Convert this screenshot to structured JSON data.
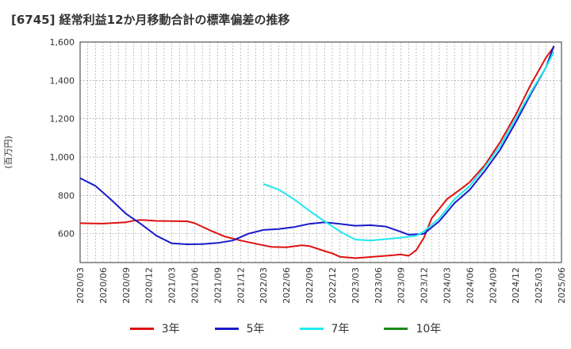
{
  "chart_data": {
    "type": "line",
    "title": "[6745]  経常利益12か月移動合計の標準偏差の推移",
    "ylabel": "(百万円)",
    "ylim": [
      450,
      1600
    ],
    "yticks": [
      600,
      800,
      1000,
      1200,
      1400,
      1600
    ],
    "ytick_labels": [
      "600",
      "800",
      "1,000",
      "1,200",
      "1,400",
      "1,600"
    ],
    "xticks": [
      "2020/03",
      "2020/06",
      "2020/09",
      "2020/12",
      "2021/03",
      "2021/06",
      "2021/09",
      "2021/12",
      "2022/03",
      "2022/06",
      "2022/09",
      "2022/12",
      "2023/03",
      "2023/06",
      "2023/09",
      "2023/12",
      "2024/03",
      "2024/06",
      "2024/09",
      "2024/12",
      "2025/03",
      "2025/06"
    ],
    "grid": true,
    "legend_position": "bottom",
    "series": [
      {
        "name": "3年",
        "color": "#dd1111",
        "points": [
          [
            "2020/03",
            655
          ],
          [
            "2020/06",
            653
          ],
          [
            "2020/09",
            660
          ],
          [
            "2020/10",
            668
          ],
          [
            "2020/11",
            672
          ],
          [
            "2021/01",
            667
          ],
          [
            "2021/03",
            666
          ],
          [
            "2021/05",
            665
          ],
          [
            "2021/06",
            655
          ],
          [
            "2021/08",
            618
          ],
          [
            "2021/10",
            585
          ],
          [
            "2021/12",
            565
          ],
          [
            "2022/02",
            548
          ],
          [
            "2022/04",
            532
          ],
          [
            "2022/06",
            530
          ],
          [
            "2022/08",
            540
          ],
          [
            "2022/09",
            536
          ],
          [
            "2022/11",
            510
          ],
          [
            "2022/12",
            498
          ],
          [
            "2023/01",
            480
          ],
          [
            "2023/03",
            473
          ],
          [
            "2023/04",
            476
          ],
          [
            "2023/06",
            482
          ],
          [
            "2023/08",
            488
          ],
          [
            "2023/09",
            492
          ],
          [
            "2023/10",
            485
          ],
          [
            "2023/11",
            515
          ],
          [
            "2023/12",
            580
          ],
          [
            "2024/01",
            680
          ],
          [
            "2024/03",
            780
          ],
          [
            "2024/05",
            838
          ],
          [
            "2024/06",
            870
          ],
          [
            "2024/08",
            960
          ],
          [
            "2024/10",
            1080
          ],
          [
            "2024/12",
            1220
          ],
          [
            "2025/02",
            1380
          ],
          [
            "2025/04",
            1520
          ],
          [
            "2025/05",
            1575
          ]
        ]
      },
      {
        "name": "5年",
        "color": "#1a1acc",
        "points": [
          [
            "2020/03",
            890
          ],
          [
            "2020/05",
            850
          ],
          [
            "2020/07",
            780
          ],
          [
            "2020/09",
            705
          ],
          [
            "2020/11",
            650
          ],
          [
            "2021/01",
            590
          ],
          [
            "2021/03",
            550
          ],
          [
            "2021/05",
            545
          ],
          [
            "2021/07",
            546
          ],
          [
            "2021/09",
            552
          ],
          [
            "2021/11",
            565
          ],
          [
            "2022/01",
            600
          ],
          [
            "2022/03",
            620
          ],
          [
            "2022/05",
            625
          ],
          [
            "2022/07",
            635
          ],
          [
            "2022/09",
            652
          ],
          [
            "2022/11",
            660
          ],
          [
            "2023/01",
            652
          ],
          [
            "2023/03",
            642
          ],
          [
            "2023/05",
            645
          ],
          [
            "2023/07",
            638
          ],
          [
            "2023/09",
            610
          ],
          [
            "2023/10",
            595
          ],
          [
            "2023/12",
            600
          ],
          [
            "2024/02",
            665
          ],
          [
            "2024/04",
            760
          ],
          [
            "2024/06",
            830
          ],
          [
            "2024/08",
            930
          ],
          [
            "2024/10",
            1040
          ],
          [
            "2024/12",
            1180
          ],
          [
            "2025/02",
            1330
          ],
          [
            "2025/04",
            1470
          ],
          [
            "2025/05",
            1580
          ]
        ]
      },
      {
        "name": "7年",
        "color": "#22e8ee",
        "points": [
          [
            "2022/03",
            860
          ],
          [
            "2022/05",
            830
          ],
          [
            "2022/07",
            780
          ],
          [
            "2022/09",
            720
          ],
          [
            "2022/11",
            665
          ],
          [
            "2023/01",
            612
          ],
          [
            "2023/03",
            570
          ],
          [
            "2023/05",
            565
          ],
          [
            "2023/07",
            572
          ],
          [
            "2023/09",
            580
          ],
          [
            "2023/11",
            590
          ],
          [
            "2023/12",
            612
          ],
          [
            "2024/02",
            680
          ],
          [
            "2024/04",
            780
          ],
          [
            "2024/06",
            850
          ],
          [
            "2024/08",
            950
          ],
          [
            "2024/10",
            1060
          ],
          [
            "2024/12",
            1200
          ],
          [
            "2025/02",
            1340
          ],
          [
            "2025/04",
            1470
          ],
          [
            "2025/05",
            1550
          ]
        ]
      },
      {
        "name": "10年",
        "color": "#1a8a1a",
        "points": []
      }
    ]
  }
}
